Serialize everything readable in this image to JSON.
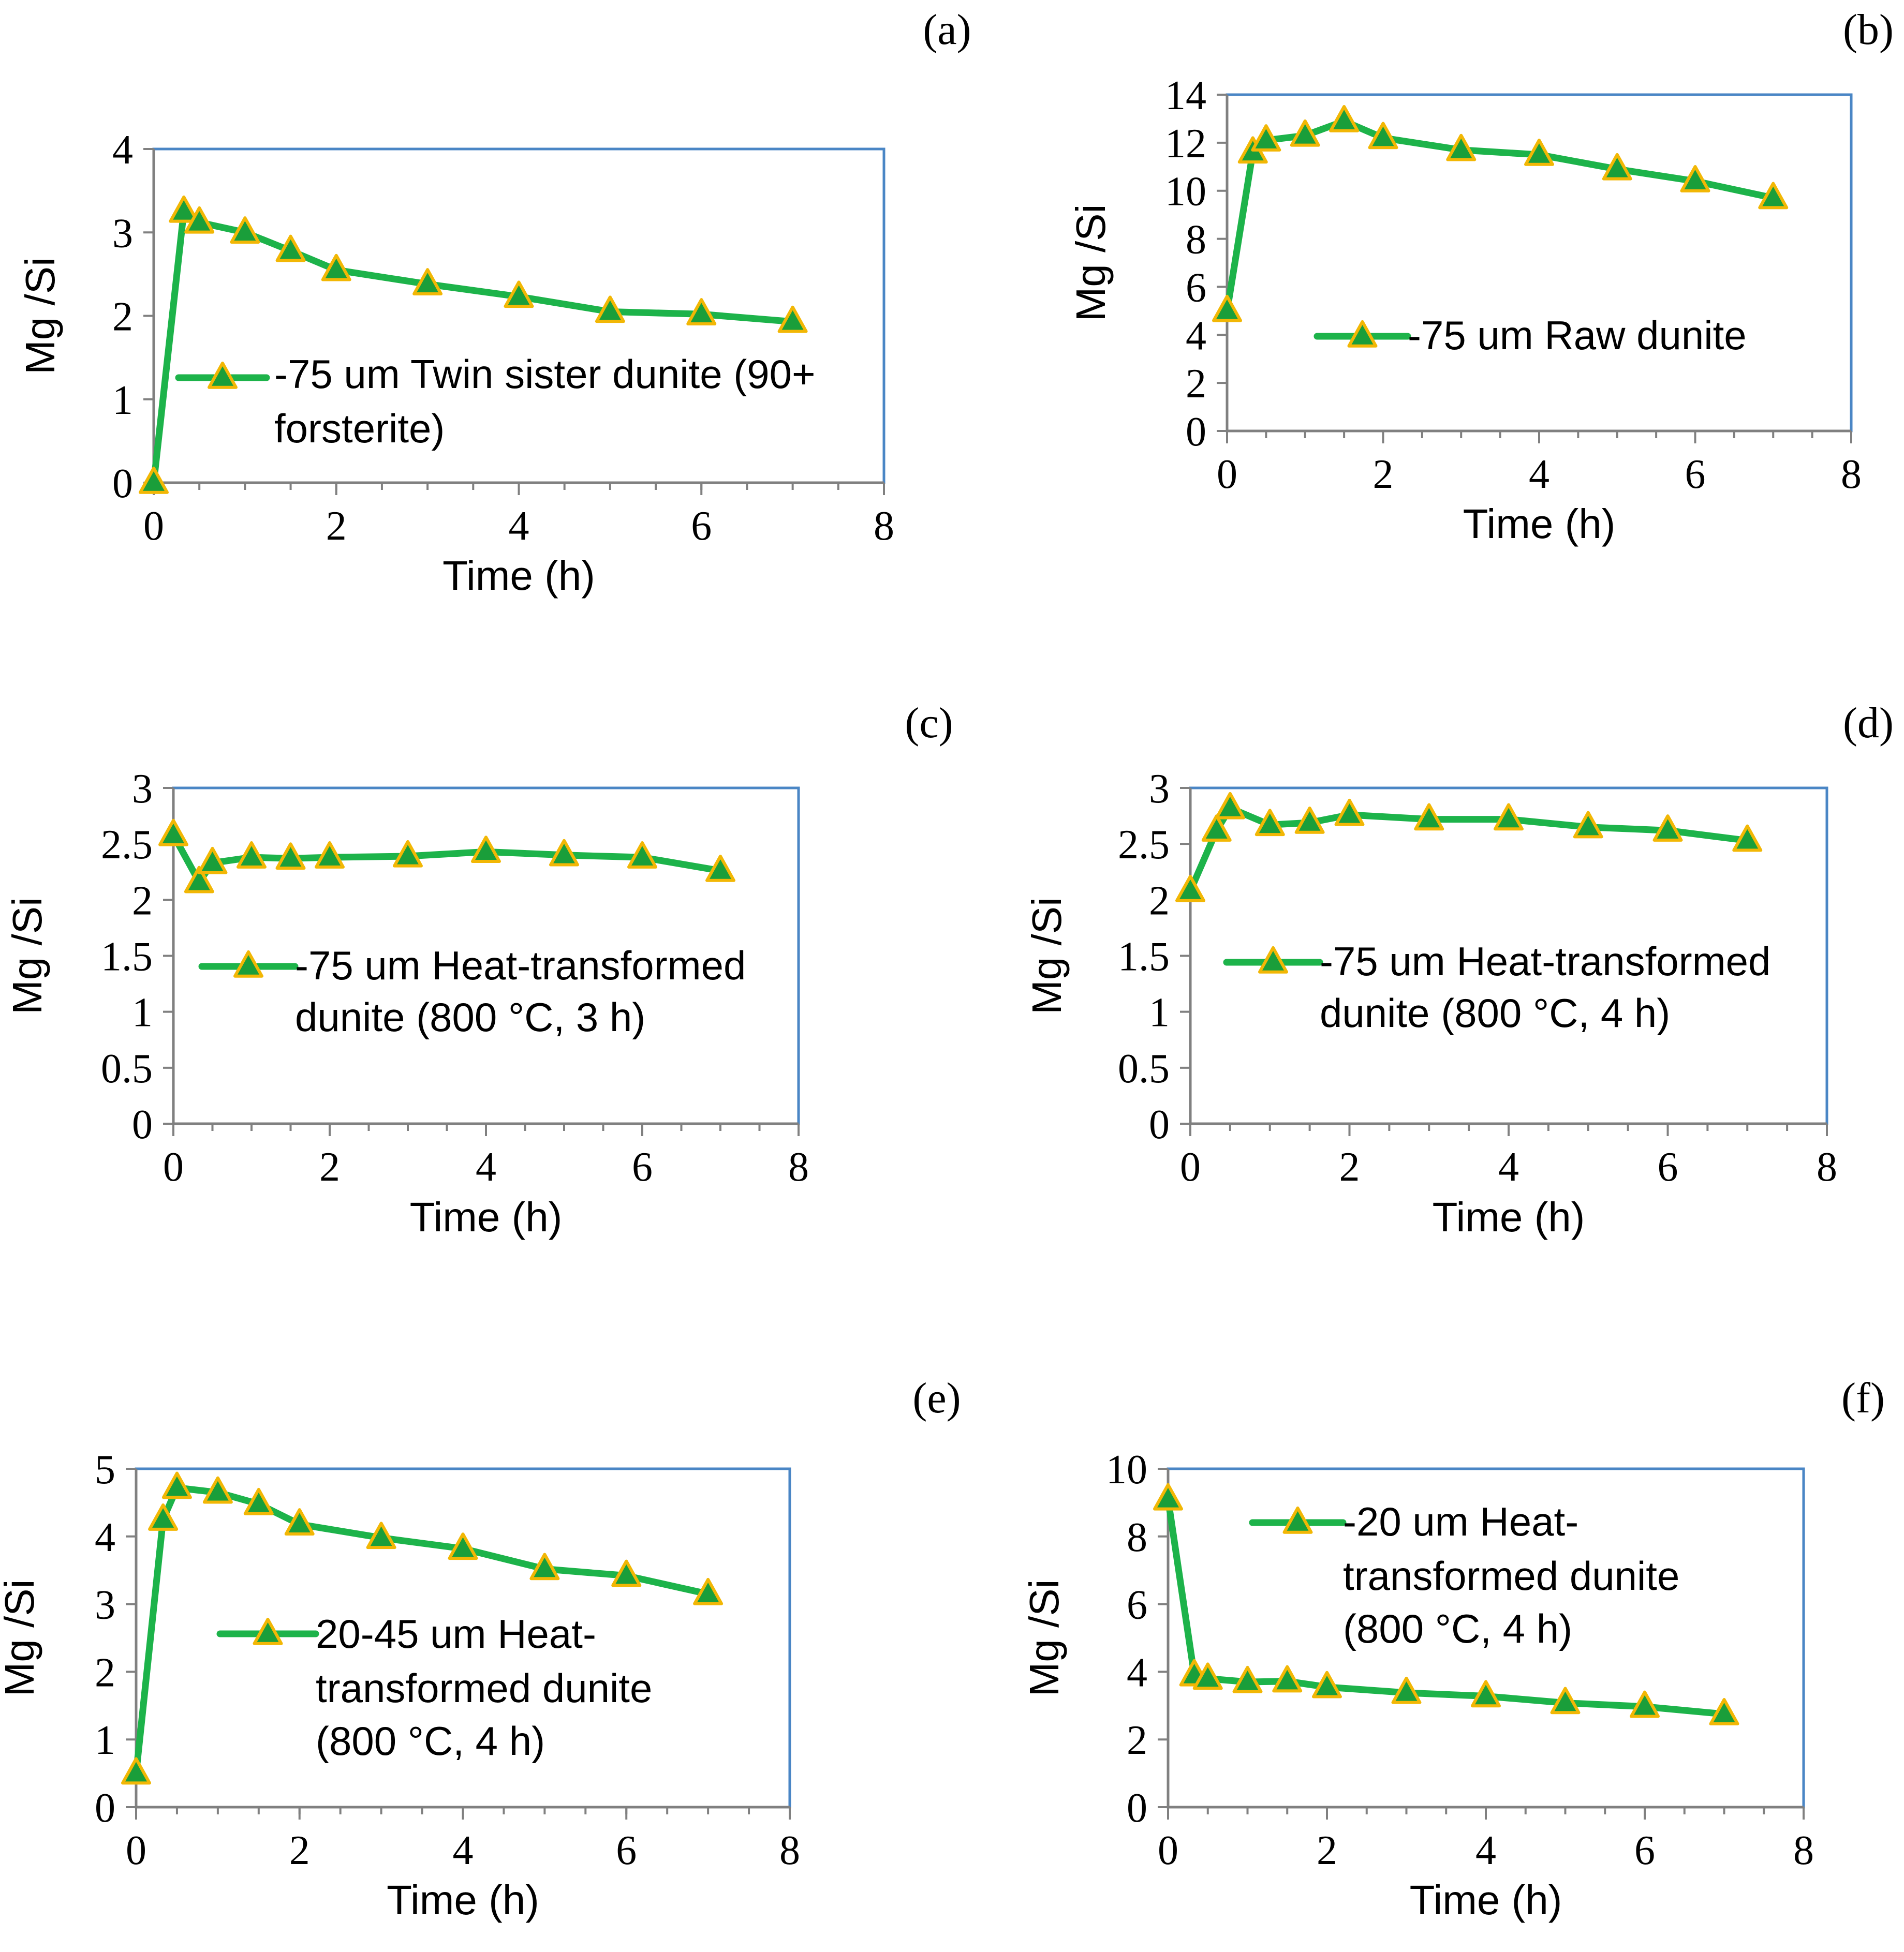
{
  "colors": {
    "series_line": "#1db34a",
    "marker_fill": "#1a9e3a",
    "marker_edge": "#f2b705",
    "plot_border": "#4a86c5",
    "axis_line": "#808080",
    "text": "#000000"
  },
  "chart_data": [
    {
      "type": "line",
      "panel_label": "(a)",
      "xlabel": "Time (h)",
      "ylabel": "Mg /Si",
      "xlim": [
        0,
        8
      ],
      "ylim": [
        0,
        4
      ],
      "x_ticks": [
        "0",
        "2",
        "4",
        "6",
        "8"
      ],
      "y_ticks": [
        "0",
        "1",
        "2",
        "3",
        "4"
      ],
      "series": [
        {
          "name": [
            "-75 um Twin sister dunite (90+",
            "forsterite)"
          ],
          "x": [
            0,
            0.33,
            0.5,
            1,
            1.5,
            2,
            3,
            4,
            5,
            6,
            7
          ],
          "y": [
            0,
            3.25,
            3.12,
            3.0,
            2.78,
            2.55,
            2.38,
            2.23,
            2.05,
            2.02,
            1.93
          ]
        }
      ]
    },
    {
      "type": "line",
      "panel_label": "(b)",
      "xlabel": "Time (h)",
      "ylabel": "Mg /Si",
      "xlim": [
        0,
        8
      ],
      "ylim": [
        0,
        14
      ],
      "x_ticks": [
        "0",
        "2",
        "4",
        "6",
        "8"
      ],
      "y_ticks": [
        "0",
        "2",
        "4",
        "6",
        "8",
        "10",
        "12",
        "14"
      ],
      "series": [
        {
          "name": [
            "-75 um Raw dunite"
          ],
          "x": [
            0,
            0.33,
            0.5,
            1,
            1.5,
            2,
            3,
            4,
            5,
            6,
            7
          ],
          "y": [
            5.0,
            11.6,
            12.1,
            12.3,
            12.9,
            12.2,
            11.7,
            11.5,
            10.9,
            10.4,
            9.7
          ]
        }
      ]
    },
    {
      "type": "line",
      "panel_label": "(c)",
      "xlabel": "Time (h)",
      "ylabel": "Mg /Si",
      "xlim": [
        0,
        8
      ],
      "ylim": [
        0,
        3
      ],
      "x_ticks": [
        "0",
        "2",
        "4",
        "6",
        "8"
      ],
      "y_ticks": [
        "0",
        "0.5",
        "1",
        "1.5",
        "2",
        "2.5",
        "3"
      ],
      "series": [
        {
          "name": [
            "-75 um Heat-transformed",
            "dunite (800 °C, 3 h)"
          ],
          "x": [
            0,
            0.33,
            0.5,
            1,
            1.5,
            2,
            3,
            4,
            5,
            6,
            7
          ],
          "y": [
            2.58,
            2.16,
            2.33,
            2.38,
            2.37,
            2.38,
            2.39,
            2.43,
            2.4,
            2.38,
            2.26
          ]
        }
      ]
    },
    {
      "type": "line",
      "panel_label": "(d)",
      "xlabel": "Time (h)",
      "ylabel": "Mg /Si",
      "xlim": [
        0,
        8
      ],
      "ylim": [
        0,
        3
      ],
      "x_ticks": [
        "0",
        "2",
        "4",
        "6",
        "8"
      ],
      "y_ticks": [
        "0",
        "0.5",
        "1",
        "1.5",
        "2",
        "2.5",
        "3"
      ],
      "series": [
        {
          "name": [
            "-75 um Heat-transformed",
            "dunite (800 °C, 4 h)"
          ],
          "x": [
            0,
            0.33,
            0.5,
            1,
            1.5,
            2,
            3,
            4,
            5,
            6,
            7
          ],
          "y": [
            2.08,
            2.62,
            2.82,
            2.67,
            2.69,
            2.76,
            2.72,
            2.72,
            2.65,
            2.62,
            2.53
          ]
        }
      ]
    },
    {
      "type": "line",
      "panel_label": "(e)",
      "xlabel": "Time (h)",
      "ylabel": "Mg /Si",
      "xlim": [
        0,
        8
      ],
      "ylim": [
        0,
        5
      ],
      "x_ticks": [
        "0",
        "2",
        "4",
        "6",
        "8"
      ],
      "y_ticks": [
        "0",
        "1",
        "2",
        "3",
        "4",
        "5"
      ],
      "series": [
        {
          "name": [
            "20-45 um Heat-",
            "transformed dunite",
            "(800 °C, 4 h)"
          ],
          "x": [
            0,
            0.33,
            0.5,
            1,
            1.5,
            2,
            3,
            4,
            5,
            6,
            7
          ],
          "y": [
            0.5,
            4.25,
            4.72,
            4.65,
            4.48,
            4.18,
            3.98,
            3.82,
            3.52,
            3.42,
            3.15
          ]
        }
      ]
    },
    {
      "type": "line",
      "panel_label": "(f)",
      "xlabel": "Time (h)",
      "ylabel": "Mg /Si",
      "xlim": [
        0,
        8
      ],
      "ylim": [
        0,
        10
      ],
      "x_ticks": [
        "0",
        "2",
        "4",
        "6",
        "8"
      ],
      "y_ticks": [
        "0",
        "2",
        "4",
        "6",
        "8",
        "10"
      ],
      "series": [
        {
          "name": [
            "-20 um Heat-",
            "transformed dunite",
            "(800 °C, 4 h)"
          ],
          "x": [
            0,
            0.33,
            0.5,
            1,
            1.5,
            2,
            3,
            4,
            5,
            6,
            7
          ],
          "y": [
            9.1,
            3.9,
            3.8,
            3.7,
            3.72,
            3.55,
            3.38,
            3.28,
            3.08,
            2.97,
            2.75
          ]
        }
      ]
    }
  ]
}
